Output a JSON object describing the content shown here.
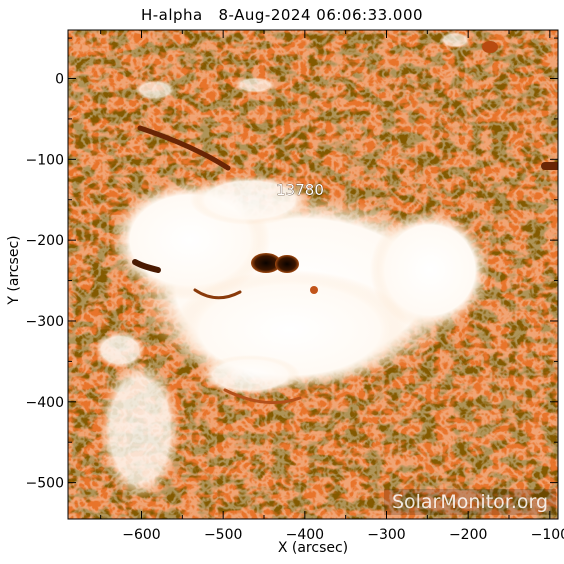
{
  "figure": {
    "title": "H-alpha   8-Aug-2024 06:06:33.000",
    "xlabel": "X (arcsec)",
    "ylabel": "Y (arcsec)",
    "region_label": "13780",
    "watermark": "SolarMonitor.org",
    "colors": {
      "chromosphere": "#e8742a",
      "fibrils": "#3a1a00",
      "plage": "#ffffff",
      "sunspot": "#1a0800"
    }
  },
  "chart_data": {
    "type": "heatmap",
    "title": "H-alpha   8-Aug-2024 06:06:33.000",
    "xlabel": "X (arcsec)",
    "ylabel": "Y (arcsec)",
    "xlim": [
      -690,
      -90
    ],
    "ylim": [
      -545,
      60
    ],
    "xticks": [
      -600,
      -500,
      -400,
      -300,
      -200,
      -100
    ],
    "yticks": [
      0,
      -100,
      -200,
      -300,
      -400,
      -500
    ],
    "annotations": [
      {
        "text": "13780",
        "x": -385,
        "y": -135
      }
    ]
  }
}
